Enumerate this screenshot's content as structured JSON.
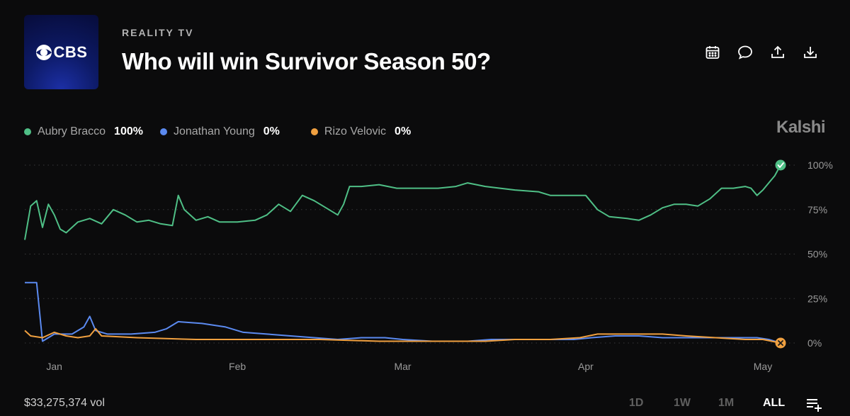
{
  "header": {
    "logo_text": "CBS",
    "category": "REALITY TV",
    "title": "Who will win Survivor Season 50?"
  },
  "actions": [
    {
      "name": "calendar-icon"
    },
    {
      "name": "comment-icon"
    },
    {
      "name": "share-icon"
    },
    {
      "name": "download-icon"
    }
  ],
  "brand": "Kalshi",
  "footer": {
    "volume": "$33,275,374 vol",
    "ranges": [
      "1D",
      "1W",
      "1M",
      "ALL"
    ],
    "active_range": "ALL"
  },
  "chart_data": {
    "type": "line",
    "x_range": [
      "2025-12-27",
      "2026-05-04"
    ],
    "x_ticks": [
      {
        "label": "Jan",
        "date": "2026-01-01"
      },
      {
        "label": "Feb",
        "date": "2026-02-01"
      },
      {
        "label": "Mar",
        "date": "2026-03-01"
      },
      {
        "label": "Apr",
        "date": "2026-04-01"
      },
      {
        "label": "May",
        "date": "2026-05-01"
      }
    ],
    "ylim": [
      0,
      100
    ],
    "y_ticks": [
      {
        "value": 100,
        "label": "100%"
      },
      {
        "value": 75,
        "label": "75%"
      },
      {
        "value": 50,
        "label": "50%"
      },
      {
        "value": 25,
        "label": "25%"
      },
      {
        "value": 0,
        "label": "0%"
      }
    ],
    "grid": "horizontal-dotted",
    "legend_placement": "top-left",
    "series": [
      {
        "name": "Aubry Bracco",
        "current": "100%",
        "color": "#4fbf86",
        "end_marker": "check",
        "points": [
          [
            "2025-12-27",
            58
          ],
          [
            "2025-12-28",
            77
          ],
          [
            "2025-12-29",
            80
          ],
          [
            "2025-12-30",
            65
          ],
          [
            "2025-12-31",
            78
          ],
          [
            "2026-01-01",
            72
          ],
          [
            "2026-01-02",
            64
          ],
          [
            "2026-01-03",
            62
          ],
          [
            "2026-01-05",
            68
          ],
          [
            "2026-01-07",
            70
          ],
          [
            "2026-01-09",
            67
          ],
          [
            "2026-01-11",
            75
          ],
          [
            "2026-01-13",
            72
          ],
          [
            "2026-01-15",
            68
          ],
          [
            "2026-01-17",
            69
          ],
          [
            "2026-01-19",
            67
          ],
          [
            "2026-01-21",
            66
          ],
          [
            "2026-01-22",
            83
          ],
          [
            "2026-01-23",
            75
          ],
          [
            "2026-01-25",
            69
          ],
          [
            "2026-01-27",
            71
          ],
          [
            "2026-01-29",
            68
          ],
          [
            "2026-02-01",
            68
          ],
          [
            "2026-02-04",
            69
          ],
          [
            "2026-02-06",
            72
          ],
          [
            "2026-02-08",
            78
          ],
          [
            "2026-02-10",
            74
          ],
          [
            "2026-02-12",
            83
          ],
          [
            "2026-02-14",
            80
          ],
          [
            "2026-02-16",
            76
          ],
          [
            "2026-02-18",
            72
          ],
          [
            "2026-02-19",
            78
          ],
          [
            "2026-02-20",
            88
          ],
          [
            "2026-02-22",
            88
          ],
          [
            "2026-02-25",
            89
          ],
          [
            "2026-02-28",
            87
          ],
          [
            "2026-03-04",
            87
          ],
          [
            "2026-03-07",
            87
          ],
          [
            "2026-03-10",
            88
          ],
          [
            "2026-03-12",
            90
          ],
          [
            "2026-03-15",
            88
          ],
          [
            "2026-03-20",
            86
          ],
          [
            "2026-03-24",
            85
          ],
          [
            "2026-03-26",
            83
          ],
          [
            "2026-03-30",
            83
          ],
          [
            "2026-04-01",
            83
          ],
          [
            "2026-04-03",
            75
          ],
          [
            "2026-04-05",
            71
          ],
          [
            "2026-04-08",
            70
          ],
          [
            "2026-04-10",
            69
          ],
          [
            "2026-04-12",
            72
          ],
          [
            "2026-04-14",
            76
          ],
          [
            "2026-04-16",
            78
          ],
          [
            "2026-04-18",
            78
          ],
          [
            "2026-04-20",
            77
          ],
          [
            "2026-04-22",
            81
          ],
          [
            "2026-04-24",
            87
          ],
          [
            "2026-04-26",
            87
          ],
          [
            "2026-04-28",
            88
          ],
          [
            "2026-04-29",
            87
          ],
          [
            "2026-04-30",
            83
          ],
          [
            "2026-05-01",
            86
          ],
          [
            "2026-05-02",
            90
          ],
          [
            "2026-05-03",
            94
          ],
          [
            "2026-05-04",
            100
          ]
        ]
      },
      {
        "name": "Jonathan Young",
        "current": "0%",
        "color": "#5b8af0",
        "end_marker": "none",
        "points": [
          [
            "2025-12-27",
            34
          ],
          [
            "2025-12-28",
            34
          ],
          [
            "2025-12-29",
            34
          ],
          [
            "2025-12-30",
            1
          ],
          [
            "2025-12-31",
            3
          ],
          [
            "2026-01-01",
            5
          ],
          [
            "2026-01-04",
            5
          ],
          [
            "2026-01-06",
            9
          ],
          [
            "2026-01-07",
            15
          ],
          [
            "2026-01-08",
            7
          ],
          [
            "2026-01-10",
            5
          ],
          [
            "2026-01-14",
            5
          ],
          [
            "2026-01-18",
            6
          ],
          [
            "2026-01-20",
            8
          ],
          [
            "2026-01-22",
            12
          ],
          [
            "2026-01-26",
            11
          ],
          [
            "2026-01-30",
            9
          ],
          [
            "2026-02-02",
            6
          ],
          [
            "2026-02-06",
            5
          ],
          [
            "2026-02-10",
            4
          ],
          [
            "2026-02-14",
            3
          ],
          [
            "2026-02-18",
            2
          ],
          [
            "2026-02-22",
            3
          ],
          [
            "2026-02-26",
            3
          ],
          [
            "2026-03-01",
            2
          ],
          [
            "2026-03-06",
            1
          ],
          [
            "2026-03-12",
            1
          ],
          [
            "2026-03-16",
            2
          ],
          [
            "2026-03-20",
            2
          ],
          [
            "2026-03-26",
            2
          ],
          [
            "2026-03-30",
            2
          ],
          [
            "2026-04-02",
            3
          ],
          [
            "2026-04-06",
            4
          ],
          [
            "2026-04-10",
            4
          ],
          [
            "2026-04-14",
            3
          ],
          [
            "2026-04-18",
            3
          ],
          [
            "2026-04-22",
            3
          ],
          [
            "2026-04-26",
            3
          ],
          [
            "2026-04-30",
            3
          ],
          [
            "2026-05-02",
            2
          ],
          [
            "2026-05-04",
            0
          ]
        ]
      },
      {
        "name": "Rizo Velovic",
        "current": "0%",
        "color": "#f0a040",
        "end_marker": "cross",
        "points": [
          [
            "2025-12-27",
            7
          ],
          [
            "2025-12-28",
            4
          ],
          [
            "2025-12-30",
            3
          ],
          [
            "2026-01-01",
            6
          ],
          [
            "2026-01-03",
            4
          ],
          [
            "2026-01-05",
            3
          ],
          [
            "2026-01-07",
            4
          ],
          [
            "2026-01-08",
            8
          ],
          [
            "2026-01-09",
            4
          ],
          [
            "2026-01-15",
            3
          ],
          [
            "2026-01-25",
            2
          ],
          [
            "2026-02-05",
            2
          ],
          [
            "2026-02-15",
            2
          ],
          [
            "2026-02-25",
            1
          ],
          [
            "2026-03-05",
            1
          ],
          [
            "2026-03-15",
            1
          ],
          [
            "2026-03-20",
            2
          ],
          [
            "2026-03-26",
            2
          ],
          [
            "2026-03-31",
            3
          ],
          [
            "2026-04-03",
            5
          ],
          [
            "2026-04-08",
            5
          ],
          [
            "2026-04-14",
            5
          ],
          [
            "2026-04-18",
            4
          ],
          [
            "2026-04-23",
            3
          ],
          [
            "2026-04-28",
            2
          ],
          [
            "2026-05-01",
            2
          ],
          [
            "2026-05-04",
            0
          ]
        ]
      }
    ]
  }
}
